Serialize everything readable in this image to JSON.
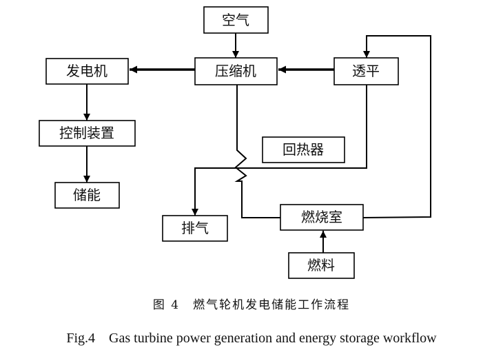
{
  "nodes": {
    "air": "空气",
    "generator": "发电机",
    "compressor": "压缩机",
    "turbine": "透平",
    "controller": "控制装置",
    "recuperator": "回热器",
    "storage": "储能",
    "exhaust": "排气",
    "combustor": "燃烧室",
    "fuel": "燃料"
  },
  "caption": {
    "cn": "图 4　燃气轮机发电储能工作流程",
    "en": "Fig.4　Gas turbine power generation and energy storage workflow"
  }
}
